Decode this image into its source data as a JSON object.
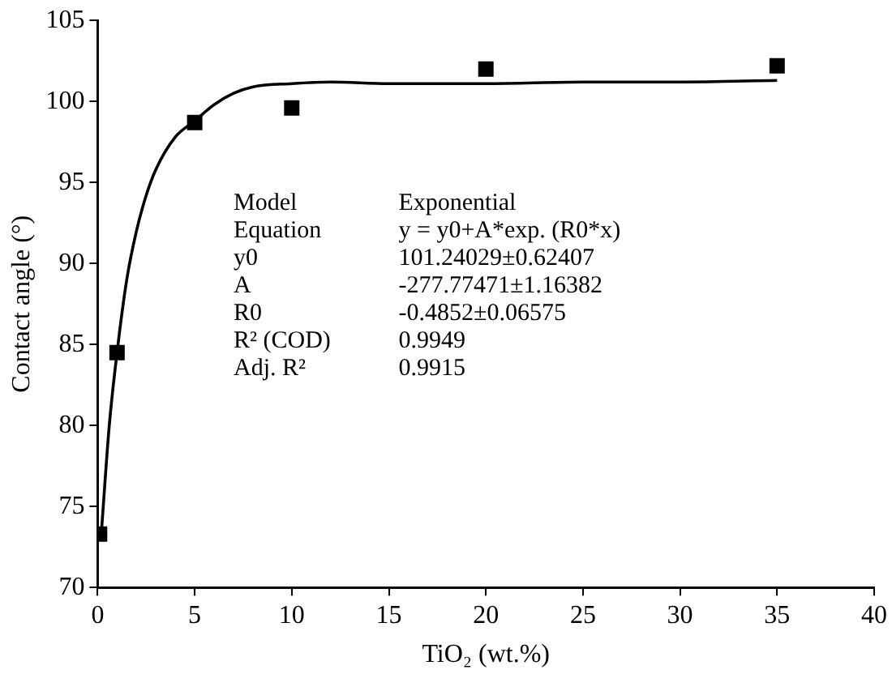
{
  "chart_data": {
    "type": "scatter",
    "xlabel": "TiO₂ (wt.%)",
    "ylabel": "Contact angle (°)",
    "xlim": [
      0,
      40
    ],
    "xticks": [
      0,
      5,
      10,
      15,
      20,
      25,
      30,
      35,
      40
    ],
    "ylim": [
      70,
      105
    ],
    "yticks": [
      70,
      75,
      80,
      85,
      90,
      95,
      100,
      105
    ],
    "grid": false,
    "legend": false,
    "marker": "square",
    "series": [
      {
        "color": "#000000",
        "x": [
          0.1,
          1,
          5,
          10,
          20,
          35
        ],
        "values": [
          73.3,
          84.5,
          98.7,
          99.6,
          102.0,
          102.2
        ]
      },
      {
        "type": "line",
        "color": "#000000",
        "marker": "none",
        "line_style": "solid",
        "x": [
          0.2,
          0.6,
          1,
          1.5,
          2,
          2.5,
          3,
          4,
          5,
          6,
          7,
          8,
          10,
          12,
          15,
          20,
          25,
          30,
          35
        ],
        "values": [
          73.5,
          80,
          84.5,
          89,
          92,
          94.2,
          95.8,
          97.8,
          98.8,
          99.8,
          100.5,
          100.9,
          101.1,
          101.2,
          101.1,
          101.1,
          101.2,
          101.2,
          101.3
        ]
      }
    ],
    "annotations": [
      "Model\tExponential",
      "Equation\ty = y0+A*exp. (R0*x)",
      "y0\t101.24029±0.62407",
      "A\t-277.77471±1.16382",
      "R0\t-0.4852±0.06575",
      "R² (COD)\t0.9949",
      "Adj. R²\t0.9915"
    ]
  }
}
